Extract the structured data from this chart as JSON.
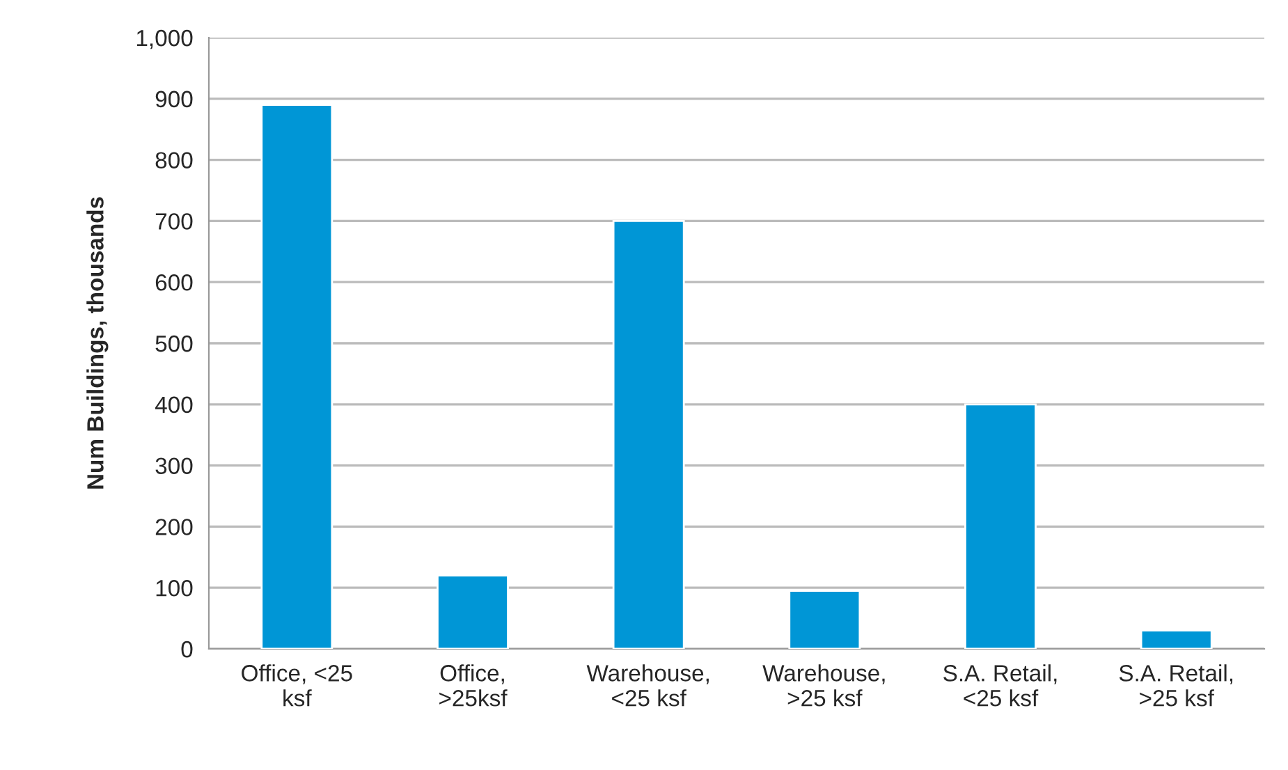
{
  "chart_data": {
    "type": "bar",
    "ylabel": "Num Buildings, thousands",
    "categories": [
      "Office, <25\nksf",
      "Office,\n>25ksf",
      "Warehouse,\n<25 ksf",
      "Warehouse,\n>25 ksf",
      "S.A. Retail,\n<25 ksf",
      "S.A. Retail,\n>25 ksf"
    ],
    "values": [
      890,
      120,
      700,
      95,
      400,
      30
    ],
    "color": "#0096d6",
    "ylim": [
      0,
      1000
    ],
    "yticks": [
      {
        "value": 0,
        "label": "0"
      },
      {
        "value": 100,
        "label": "100"
      },
      {
        "value": 200,
        "label": "200"
      },
      {
        "value": 300,
        "label": "300"
      },
      {
        "value": 400,
        "label": "400"
      },
      {
        "value": 500,
        "label": "500"
      },
      {
        "value": 600,
        "label": "600"
      },
      {
        "value": 700,
        "label": "700"
      },
      {
        "value": 800,
        "label": "800"
      },
      {
        "value": 900,
        "label": "900"
      },
      {
        "value": 1000,
        "label": "1,000"
      }
    ],
    "grid": "y"
  }
}
